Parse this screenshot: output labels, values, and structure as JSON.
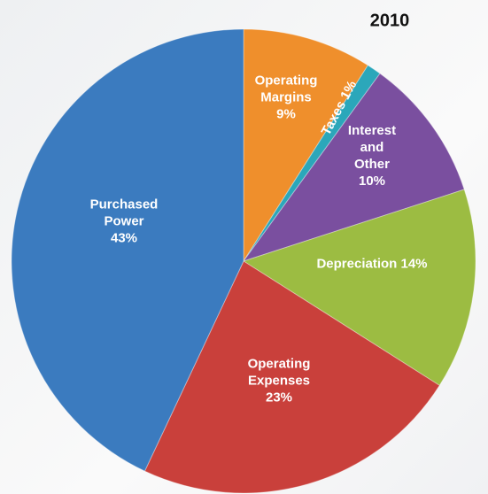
{
  "chart_data": {
    "type": "pie",
    "title": "2010",
    "categories": [
      "Operating Margins",
      "Taxes",
      "Interest and Other",
      "Depreciation",
      "Operating Expenses",
      "Purchased Power"
    ],
    "values": [
      9,
      1,
      10,
      14,
      23,
      43
    ],
    "value_labels": [
      "9%",
      "1%",
      "10%",
      "14%",
      "23%",
      "43%"
    ],
    "colors": [
      "#ef8f2c",
      "#2ba7ba",
      "#7a4f9f",
      "#9cbc42",
      "#c9403b",
      "#3b7bbf"
    ]
  }
}
